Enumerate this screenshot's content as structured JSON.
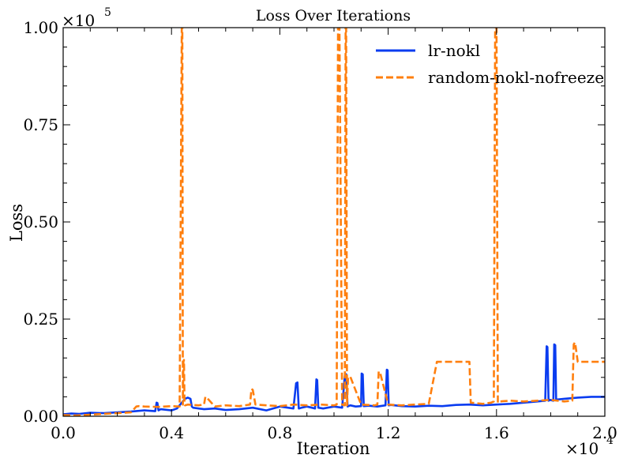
{
  "chart_data": {
    "type": "line",
    "title": "Loss Over Iterations",
    "xlabel": "Iteration",
    "ylabel": "Loss",
    "x_multiplier": "×10",
    "x_multiplier_exp": "4",
    "y_multiplier": "×10",
    "y_multiplier_exp": "5",
    "xlim": [
      0,
      20000
    ],
    "ylim": [
      0,
      100000
    ],
    "x_ticks": [
      0,
      4000,
      8000,
      12000,
      16000,
      20000
    ],
    "x_tick_labels": [
      "0.0",
      "0.4",
      "0.8",
      "1.2",
      "1.6",
      "2.0"
    ],
    "y_ticks": [
      0,
      25000,
      50000,
      75000,
      100000
    ],
    "y_tick_labels": [
      "0.00",
      "0.25",
      "0.50",
      "0.75",
      "1.00"
    ],
    "grid": false,
    "legend_position": "top-right",
    "series": [
      {
        "name": "lr-nokl",
        "color": "#0a3cf0",
        "style": "solid",
        "x": [
          0,
          300,
          600,
          1000,
          1500,
          2000,
          2500,
          3000,
          3400,
          3450,
          3480,
          3520,
          3600,
          4000,
          4200,
          4500,
          4600,
          4700,
          4750,
          4800,
          5200,
          5600,
          6000,
          6500,
          7000,
          7500,
          8000,
          8500,
          8600,
          8650,
          8700,
          8800,
          9000,
          9300,
          9350,
          9380,
          9420,
          9600,
          10000,
          10300,
          10400,
          10450,
          10500,
          10600,
          10800,
          11000,
          11020,
          11060,
          11100,
          11300,
          11600,
          11900,
          11950,
          11980,
          12020,
          12100,
          12500,
          13000,
          13500,
          14000,
          14500,
          15000,
          15500,
          16000,
          16500,
          17000,
          17500,
          17800,
          17850,
          17880,
          17920,
          17980,
          18100,
          18130,
          18170,
          18200,
          18250,
          18500,
          19000,
          19500,
          20000
        ],
        "y": [
          500,
          700,
          600,
          900,
          800,
          1000,
          1200,
          1500,
          1300,
          3500,
          3400,
          1500,
          1800,
          1500,
          2000,
          4500,
          4800,
          4500,
          2500,
          2200,
          1800,
          2000,
          1600,
          1800,
          2200,
          1500,
          2500,
          2000,
          8500,
          8700,
          2000,
          2200,
          2500,
          2000,
          9500,
          9300,
          2200,
          2000,
          2500,
          2200,
          10500,
          10800,
          2500,
          2800,
          2500,
          2600,
          11000,
          10800,
          2600,
          2700,
          2500,
          2800,
          12000,
          11800,
          2800,
          2900,
          2600,
          2500,
          2700,
          2600,
          2900,
          3000,
          2800,
          3000,
          3200,
          3500,
          3800,
          4000,
          18000,
          17800,
          4000,
          4200,
          4000,
          18500,
          18300,
          4200,
          4300,
          4500,
          4800,
          5000,
          5000
        ]
      },
      {
        "name": "random-nokl-nofreeze",
        "color": "#ff7f0e",
        "style": "dashed",
        "x": [
          0,
          500,
          1000,
          1500,
          2000,
          2500,
          2700,
          2800,
          3000,
          3500,
          4000,
          4300,
          4380,
          4400,
          4420,
          4440,
          4460,
          4480,
          4500,
          4600,
          5000,
          5200,
          5250,
          5300,
          5600,
          6000,
          6500,
          6900,
          6950,
          7000,
          7100,
          7500,
          8000,
          8500,
          9000,
          9500,
          10000,
          10100,
          10150,
          10200,
          10300,
          10400,
          10430,
          10450,
          10480,
          10520,
          10600,
          11000,
          11500,
          11600,
          11650,
          11700,
          12000,
          12500,
          13000,
          13500,
          13800,
          14000,
          14500,
          15000,
          15050,
          15500,
          15800,
          15900,
          15950,
          16000,
          16050,
          16100,
          16500,
          17000,
          17500,
          18000,
          18500,
          18800,
          18850,
          18900,
          19000,
          19500,
          20000
        ],
        "y": [
          300,
          200,
          400,
          600,
          800,
          1000,
          2500,
          2600,
          2500,
          2400,
          2600,
          2500,
          100000,
          100000,
          3000,
          14000,
          14500,
          3000,
          2800,
          3000,
          2800,
          3000,
          5000,
          4800,
          2500,
          2800,
          2600,
          3000,
          7000,
          6800,
          3000,
          2800,
          2600,
          3000,
          2800,
          3000,
          2800,
          3000,
          100000,
          100000,
          3000,
          2800,
          100000,
          100000,
          2800,
          10000,
          10200,
          3000,
          2800,
          3000,
          11500,
          11300,
          3000,
          2800,
          3000,
          3200,
          14000,
          14000,
          14000,
          14000,
          3500,
          3200,
          3500,
          3800,
          100000,
          100000,
          3500,
          3800,
          4000,
          3800,
          4000,
          4200,
          3800,
          4000,
          18500,
          19000,
          14000,
          14000,
          14000
        ]
      }
    ]
  }
}
